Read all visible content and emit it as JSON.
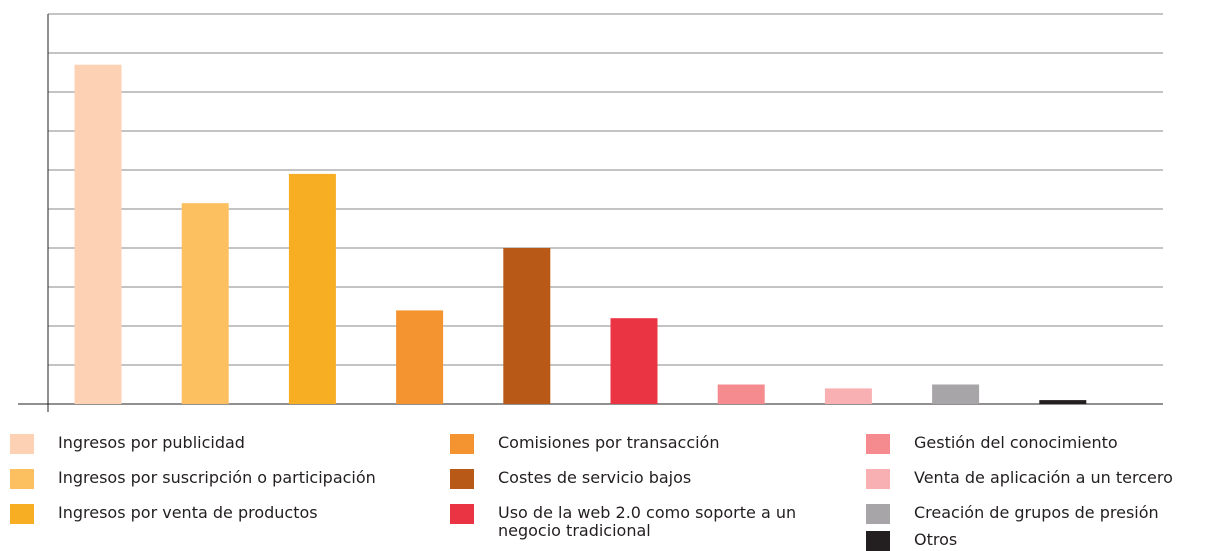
{
  "chart_data": {
    "type": "bar",
    "categories": [
      "Ingresos por publicidad",
      "Ingresos por suscripción o participación",
      "Ingresos por venta de productos",
      "Comisiones por transacción",
      "Costes de servicio bajos",
      "Uso de la web 2.0 como soporte a un negocio tradicional",
      "Gestión del conocimiento",
      "Venta de aplicación a un tercero",
      "Creación de grupos de presión",
      "Otros"
    ],
    "values": [
      8.7,
      5.15,
      5.9,
      2.4,
      4.0,
      2.2,
      0.5,
      0.4,
      0.5,
      0.1
    ],
    "colors": [
      "#fdd1b3",
      "#fcc060",
      "#f8ae23",
      "#f39431",
      "#b95917",
      "#eb3443",
      "#f58b8f",
      "#f8b0b3",
      "#a7a5a7",
      "#231f20"
    ],
    "ylim": [
      0,
      10
    ],
    "yticks": [
      0,
      1,
      2,
      3,
      4,
      5,
      6,
      7,
      8,
      9,
      10
    ],
    "grid": true
  }
}
